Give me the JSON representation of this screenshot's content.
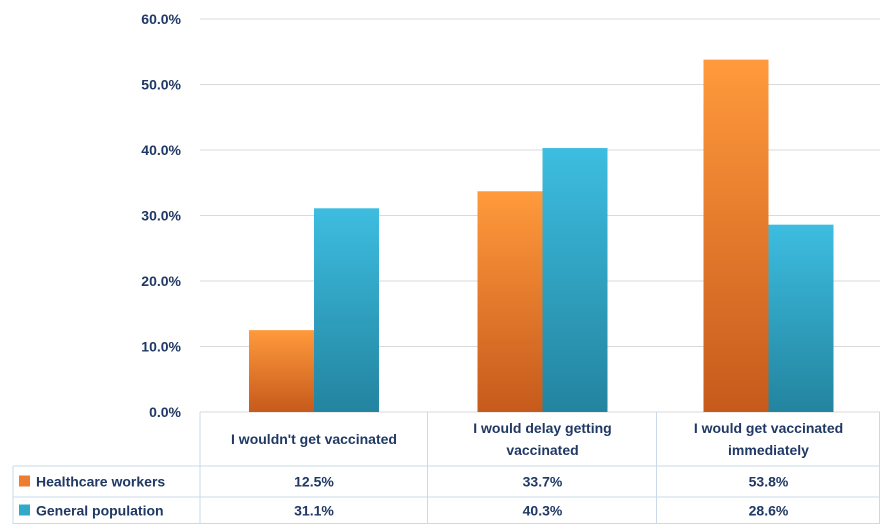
{
  "chart_data": {
    "type": "bar",
    "categories": [
      "I wouldn't get vaccinated",
      "I would delay getting vaccinated",
      "I would get vaccinated immediately"
    ],
    "series": [
      {
        "name": "Healthcare workers",
        "values": [
          12.5,
          33.7,
          53.8
        ],
        "labels": [
          "12.5%",
          "33.7%",
          "53.8%"
        ],
        "color": "#ed7d31"
      },
      {
        "name": "General population",
        "values": [
          31.1,
          40.3,
          28.6
        ],
        "labels": [
          "31.1%",
          "40.3%",
          "28.6%"
        ],
        "color": "#31a9c9"
      }
    ],
    "ylim": [
      0,
      60
    ],
    "yticks": [
      0,
      10,
      20,
      30,
      40,
      50,
      60
    ],
    "ytick_labels": [
      "0.0%",
      "10.0%",
      "20.0%",
      "30.0%",
      "40.0%",
      "50.0%",
      "60.0%"
    ],
    "grid": true,
    "legend": "data-table-left",
    "title": "",
    "xlabel": "",
    "ylabel": ""
  }
}
